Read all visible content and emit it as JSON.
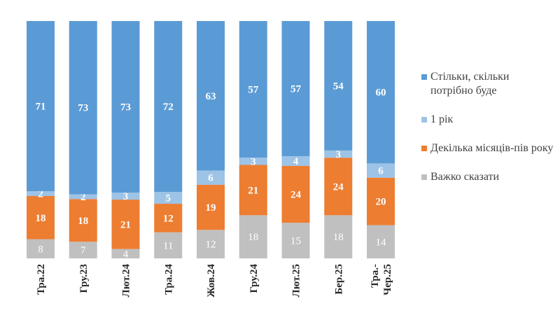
{
  "chart_data": {
    "type": "bar",
    "stacked": true,
    "percent": true,
    "categories": [
      "Тра.22",
      "Гру.23",
      "Лют.24",
      "Тра.24",
      "Жов.24",
      "Гру.24",
      "Лют.25",
      "Бер.25",
      "Тра.-Чер.25"
    ],
    "series": [
      {
        "name": "Важко сказати",
        "color": "#c0c0c0",
        "values": [
          8,
          7,
          4,
          11,
          12,
          18,
          15,
          18,
          14
        ]
      },
      {
        "name": "Декілька місяців-пів року",
        "color": "#ed7d31",
        "values": [
          18,
          18,
          21,
          12,
          19,
          21,
          24,
          24,
          20
        ]
      },
      {
        "name": "1 рік",
        "color": "#9dc3e6",
        "values": [
          2,
          2,
          3,
          5,
          6,
          3,
          4,
          3,
          6
        ]
      },
      {
        "name": "Стільки, скільки потрібно буде",
        "color": "#5b9bd5",
        "values": [
          71,
          73,
          73,
          72,
          63,
          57,
          57,
          54,
          60
        ]
      }
    ],
    "legend_order": [
      3,
      2,
      1,
      0
    ],
    "legend_position": "right",
    "grid": false
  }
}
